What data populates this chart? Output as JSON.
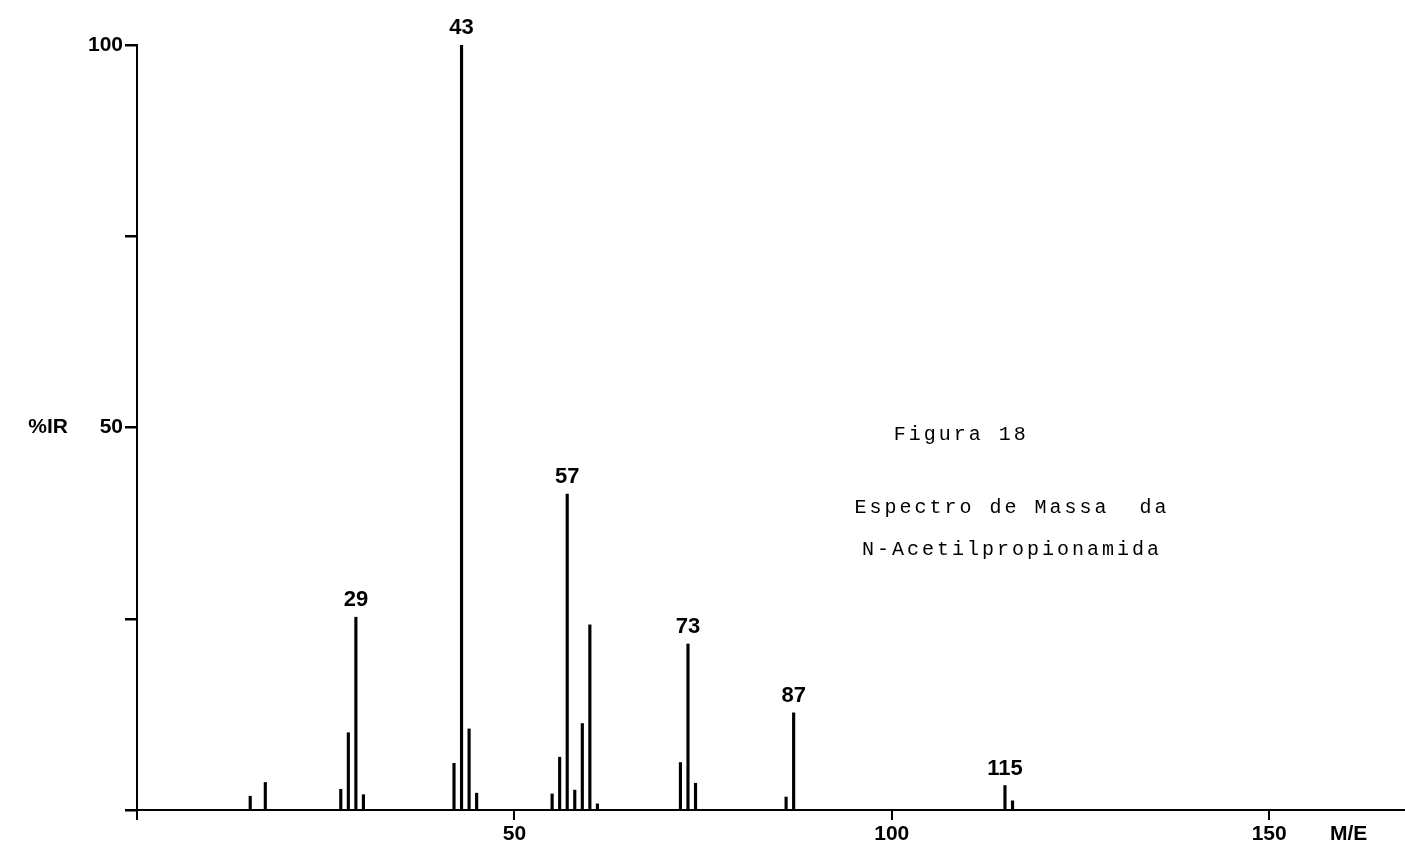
{
  "chart_data": {
    "type": "bar",
    "xlabel": "M/E",
    "ylabel": "%IR",
    "x": [
      15,
      17,
      27,
      28,
      29,
      30,
      42,
      43,
      44,
      45,
      55,
      56,
      57,
      58,
      59,
      60,
      61,
      72,
      73,
      74,
      86,
      87,
      115,
      116
    ],
    "values": [
      1.8,
      3.6,
      2.7,
      10.1,
      25.2,
      2.0,
      6.1,
      100,
      10.6,
      2.2,
      2.1,
      6.9,
      41.3,
      2.6,
      11.3,
      24.2,
      0.8,
      6.2,
      21.7,
      3.5,
      1.7,
      12.7,
      3.2,
      1.2
    ],
    "color": "#000000",
    "xlim": [
      0,
      168
    ],
    "xticks": [
      {
        "value": 0,
        "label": null
      },
      50,
      100,
      150
    ],
    "ylim": [
      0,
      100
    ],
    "yticks": [
      {
        "value": 0,
        "label": null
      },
      {
        "value": 25,
        "label": null
      },
      50,
      {
        "value": 75,
        "label": null
      },
      100
    ],
    "grid": false,
    "legend": false,
    "annotations": [
      "Figura 18",
      "Espectro de Massa  da",
      "N-Acetilpropionamida",
      {
        "text": "29",
        "x": 29,
        "y": 25.2
      },
      {
        "text": "43",
        "x": 43,
        "y": 100
      },
      {
        "text": "57",
        "x": 57,
        "y": 41.3
      },
      {
        "text": "73",
        "x": 73,
        "y": 21.7
      },
      {
        "text": "87",
        "x": 87,
        "y": 12.7
      },
      {
        "text": "115",
        "x": 115,
        "y": 3.2
      }
    ]
  }
}
